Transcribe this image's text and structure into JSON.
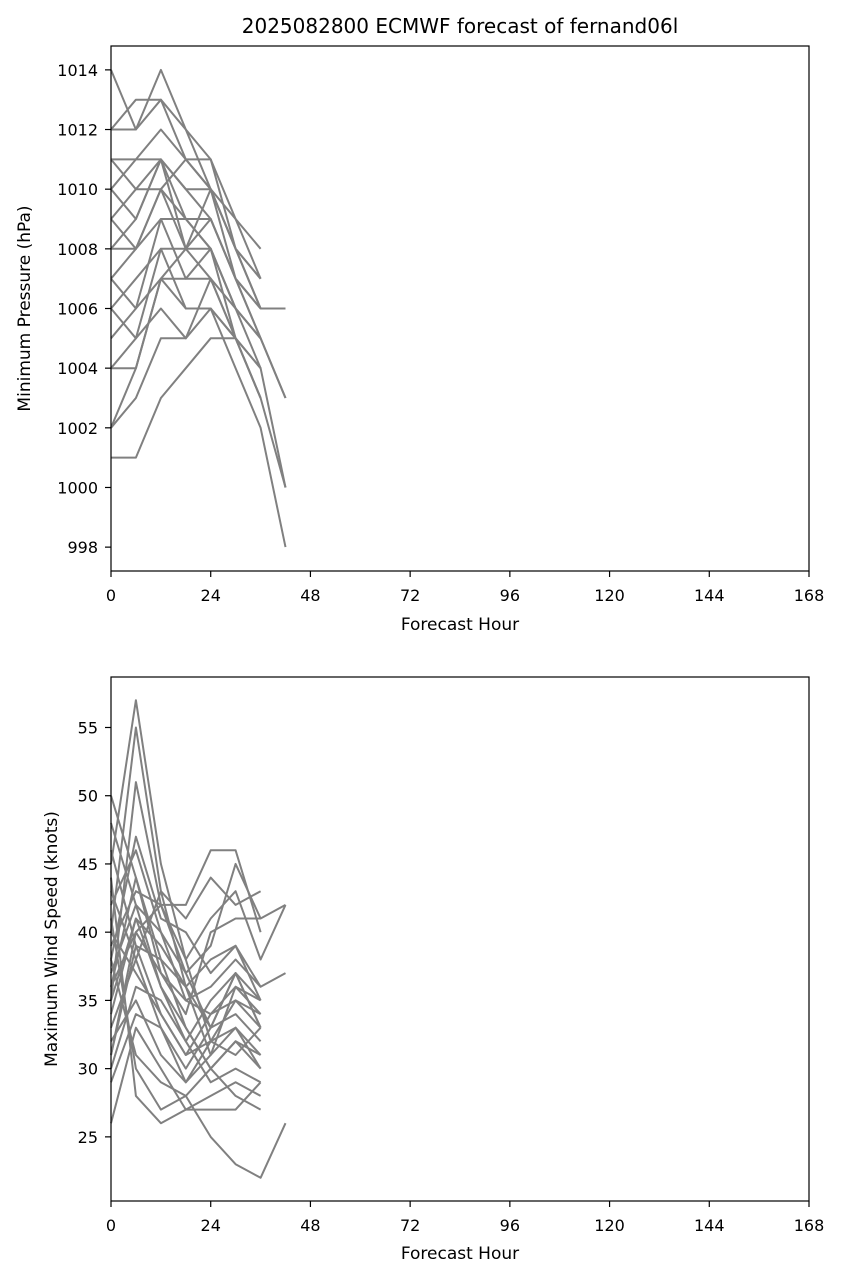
{
  "colors": {
    "member_line": "#808080",
    "axis": "#000000",
    "background": "#ffffff"
  },
  "chart_data": [
    {
      "type": "line",
      "title": "2025082800 ECMWF forecast of fernand06l",
      "xlabel": "Forecast Hour",
      "ylabel": "Minimum Pressure (hPa)",
      "xlim": [
        0,
        168
      ],
      "ylim": [
        997.2,
        1014.8
      ],
      "xticks": [
        0,
        24,
        48,
        72,
        96,
        120,
        144,
        168
      ],
      "yticks": [
        998,
        1000,
        1002,
        1004,
        1006,
        1008,
        1010,
        1012,
        1014
      ],
      "grid": false,
      "series": [
        {
          "x": [
            0,
            6,
            12,
            18,
            24,
            30,
            36,
            42
          ],
          "y": [
            1014,
            1012,
            1013,
            1012,
            1011,
            1008,
            1006,
            1006
          ]
        },
        {
          "x": [
            0,
            6,
            12,
            18,
            24,
            30,
            36
          ],
          "y": [
            1012,
            1013,
            1013,
            1011,
            1011,
            1009,
            1008
          ]
        },
        {
          "x": [
            0,
            6,
            12,
            18,
            24,
            30,
            36
          ],
          "y": [
            1012,
            1012,
            1014,
            1012,
            1010,
            1009,
            1007
          ]
        },
        {
          "x": [
            0,
            6,
            12,
            18,
            24,
            30,
            36
          ],
          "y": [
            1011,
            1011,
            1012,
            1011,
            1010,
            1008,
            1007
          ]
        },
        {
          "x": [
            0,
            6,
            12,
            18,
            24,
            30,
            36
          ],
          "y": [
            1011,
            1010,
            1011,
            1010,
            1009,
            1007,
            1006
          ]
        },
        {
          "x": [
            0,
            6,
            12,
            18,
            24,
            30,
            36
          ],
          "y": [
            1010,
            1011,
            1011,
            1010,
            1010,
            1008,
            1006
          ]
        },
        {
          "x": [
            0,
            6,
            12,
            18,
            24,
            30,
            36,
            42
          ],
          "y": [
            1010,
            1009,
            1011,
            1009,
            1009,
            1007,
            1005,
            1003
          ]
        },
        {
          "x": [
            0,
            6,
            12,
            18,
            24,
            30,
            36
          ],
          "y": [
            1009,
            1010,
            1010,
            1011,
            1010,
            1008,
            1007
          ]
        },
        {
          "x": [
            0,
            6,
            12,
            18,
            24,
            30,
            36
          ],
          "y": [
            1009,
            1008,
            1010,
            1009,
            1008,
            1006,
            1005
          ]
        },
        {
          "x": [
            0,
            6,
            12,
            18,
            24,
            30,
            36
          ],
          "y": [
            1008,
            1009,
            1011,
            1008,
            1009,
            1007,
            1006
          ]
        },
        {
          "x": [
            0,
            6,
            12,
            18,
            24,
            30,
            36
          ],
          "y": [
            1008,
            1008,
            1009,
            1009,
            1008,
            1005,
            1004
          ]
        },
        {
          "x": [
            0,
            6,
            12,
            18,
            24,
            30,
            36
          ],
          "y": [
            1007,
            1008,
            1010,
            1008,
            1008,
            1006,
            1004
          ]
        },
        {
          "x": [
            0,
            6,
            12,
            18,
            24,
            30,
            36
          ],
          "y": [
            1007,
            1006,
            1009,
            1007,
            1007,
            1006,
            1005
          ]
        },
        {
          "x": [
            0,
            6,
            12,
            18,
            24,
            30,
            36,
            42
          ],
          "y": [
            1006,
            1007,
            1008,
            1008,
            1007,
            1005,
            1004,
            1000
          ]
        },
        {
          "x": [
            0,
            6,
            12,
            18,
            24,
            30,
            36
          ],
          "y": [
            1006,
            1005,
            1008,
            1006,
            1006,
            1005,
            1003
          ]
        },
        {
          "x": [
            0,
            6,
            12,
            18,
            24,
            30,
            36
          ],
          "y": [
            1005,
            1006,
            1007,
            1007,
            1008,
            1006,
            1005
          ]
        },
        {
          "x": [
            0,
            6,
            12,
            18,
            24,
            30,
            36
          ],
          "y": [
            1004,
            1004,
            1007,
            1006,
            1006,
            1005,
            1003
          ]
        },
        {
          "x": [
            0,
            6,
            12,
            18,
            24,
            30
          ],
          "y": [
            1004,
            1005,
            1006,
            1005,
            1007,
            1005
          ]
        },
        {
          "x": [
            0,
            6,
            12,
            18,
            24,
            30,
            36,
            42
          ],
          "y": [
            1002,
            1003,
            1005,
            1005,
            1006,
            1004,
            1002,
            998
          ]
        },
        {
          "x": [
            0,
            6,
            12,
            18,
            24,
            30,
            36,
            42
          ],
          "y": [
            1001,
            1001,
            1003,
            1004,
            1005,
            1005,
            1003,
            1000
          ]
        },
        {
          "x": [
            0,
            6,
            12,
            18,
            24,
            30,
            36,
            42
          ],
          "y": [
            1002,
            1004,
            1007,
            1008,
            1010,
            1007,
            1005,
            1003
          ]
        }
      ]
    },
    {
      "type": "line",
      "title": "",
      "xlabel": "Forecast Hour",
      "ylabel": "Maximum Wind Speed (knots)",
      "xlim": [
        0,
        168
      ],
      "ylim": [
        20.3,
        58.7
      ],
      "xticks": [
        0,
        24,
        48,
        72,
        96,
        120,
        144,
        168
      ],
      "yticks": [
        25,
        30,
        35,
        40,
        45,
        50,
        55
      ],
      "grid": false,
      "series": [
        {
          "x": [
            0,
            6,
            12,
            18,
            24,
            30,
            36
          ],
          "y": [
            45,
            57,
            45,
            38,
            32,
            35,
            33
          ]
        },
        {
          "x": [
            0,
            6,
            12,
            18,
            24,
            30,
            36
          ],
          "y": [
            40,
            55,
            43,
            36,
            31,
            33,
            31
          ]
        },
        {
          "x": [
            0,
            6,
            12,
            18,
            24,
            30,
            36
          ],
          "y": [
            35,
            51,
            42,
            37,
            33,
            37,
            35
          ]
        },
        {
          "x": [
            0,
            6,
            12,
            18,
            24,
            30,
            36
          ],
          "y": [
            38,
            47,
            41,
            40,
            37,
            39,
            36
          ]
        },
        {
          "x": [
            0,
            6,
            12,
            18,
            24,
            30,
            36
          ],
          "y": [
            42,
            46,
            40,
            35,
            34,
            36,
            34
          ]
        },
        {
          "x": [
            0,
            6,
            12,
            18,
            24,
            30,
            36
          ],
          "y": [
            50,
            44,
            38,
            33,
            30,
            32,
            30
          ]
        },
        {
          "x": [
            0,
            6,
            12,
            18,
            24,
            30,
            36
          ],
          "y": [
            48,
            42,
            36,
            32,
            29,
            30,
            29
          ]
        },
        {
          "x": [
            0,
            6,
            12,
            18,
            24,
            30,
            36
          ],
          "y": [
            36,
            40,
            42,
            42,
            46,
            46,
            40
          ]
        },
        {
          "x": [
            0,
            6,
            12,
            18,
            24,
            30,
            36
          ],
          "y": [
            33,
            38,
            43,
            41,
            44,
            42,
            43
          ]
        },
        {
          "x": [
            0,
            6,
            12,
            18,
            24,
            30,
            36,
            42
          ],
          "y": [
            39,
            43,
            42,
            38,
            41,
            43,
            38,
            42
          ]
        },
        {
          "x": [
            0,
            6,
            12,
            18,
            24,
            30,
            36,
            42
          ],
          "y": [
            37,
            42,
            40,
            37,
            39,
            45,
            41,
            42
          ]
        },
        {
          "x": [
            0,
            6,
            12,
            18,
            24,
            30,
            36
          ],
          "y": [
            34,
            41,
            39,
            36,
            38,
            39,
            35
          ]
        },
        {
          "x": [
            0,
            6,
            12,
            18,
            24,
            30,
            36,
            42
          ],
          "y": [
            31,
            40,
            37,
            35,
            36,
            38,
            36,
            37
          ]
        },
        {
          "x": [
            0,
            6,
            12,
            18,
            24,
            30,
            36
          ],
          "y": [
            30,
            36,
            35,
            32,
            35,
            37,
            33
          ]
        },
        {
          "x": [
            0,
            6,
            12,
            18,
            24,
            30,
            36
          ],
          "y": [
            29,
            34,
            33,
            30,
            33,
            34,
            32
          ]
        },
        {
          "x": [
            0,
            6,
            12,
            18,
            24,
            30,
            36
          ],
          "y": [
            32,
            35,
            31,
            29,
            32,
            33,
            30
          ]
        },
        {
          "x": [
            0,
            6,
            12,
            18,
            24,
            30,
            36
          ],
          "y": [
            26,
            33,
            30,
            27,
            28,
            29,
            28
          ]
        },
        {
          "x": [
            0,
            6,
            12,
            18,
            24,
            30,
            36
          ],
          "y": [
            41,
            30,
            27,
            28,
            30,
            28,
            27
          ]
        },
        {
          "x": [
            0,
            6,
            12,
            18,
            24,
            30,
            36
          ],
          "y": [
            44,
            28,
            26,
            27,
            27,
            27,
            29
          ]
        },
        {
          "x": [
            0,
            6,
            12,
            18,
            24,
            30,
            36,
            42
          ],
          "y": [
            38,
            31,
            29,
            28,
            25,
            23,
            22,
            26
          ]
        },
        {
          "x": [
            0,
            6,
            12,
            18,
            24,
            30,
            36
          ],
          "y": [
            40,
            37,
            34,
            31,
            32,
            31,
            33
          ]
        },
        {
          "x": [
            0,
            6,
            12,
            18,
            24,
            30,
            36
          ],
          "y": [
            36,
            44,
            37,
            34,
            40,
            41,
            41
          ]
        },
        {
          "x": [
            0,
            6,
            12,
            18,
            24,
            30,
            36
          ],
          "y": [
            43,
            38,
            33,
            29,
            31,
            36,
            35
          ]
        },
        {
          "x": [
            0,
            6,
            12,
            18,
            24,
            30,
            36
          ],
          "y": [
            46,
            39,
            34,
            31,
            34,
            35,
            34
          ]
        },
        {
          "x": [
            0,
            6,
            12,
            18,
            24,
            30,
            36
          ],
          "y": [
            35,
            41,
            36,
            33,
            30,
            32,
            31
          ]
        },
        {
          "x": [
            0,
            6,
            12,
            18,
            24,
            30,
            36
          ],
          "y": [
            31,
            39,
            38,
            36,
            33,
            37,
            33
          ]
        }
      ]
    }
  ]
}
